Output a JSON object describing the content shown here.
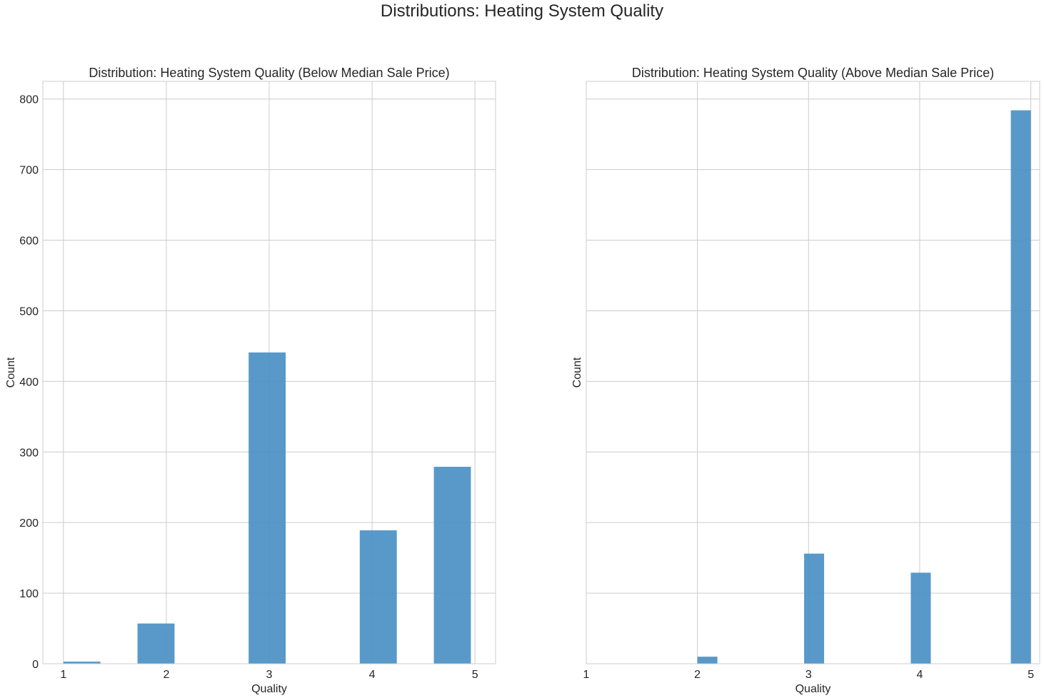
{
  "figure": {
    "suptitle": "Distributions: Heating System Quality"
  },
  "chart_data": [
    {
      "type": "bar",
      "title": "Distribution: Heating System Quality (Below Median Sale Price)",
      "xlabel": "Quality",
      "ylabel": "Count",
      "xlim": [
        0.8,
        5.2
      ],
      "ylim": [
        0,
        825
      ],
      "xticks": [
        1,
        2,
        3,
        4,
        5
      ],
      "yticks": [
        0,
        100,
        200,
        300,
        400,
        500,
        600,
        700,
        800
      ],
      "show_ytick_labels": true,
      "grid": true,
      "bar_color": "#4a90c4",
      "bars": [
        {
          "x0": 1.0,
          "x1": 1.36,
          "value": 3
        },
        {
          "x0": 1.72,
          "x1": 2.08,
          "value": 57
        },
        {
          "x0": 2.8,
          "x1": 3.16,
          "value": 441
        },
        {
          "x0": 3.88,
          "x1": 4.24,
          "value": 189
        },
        {
          "x0": 4.6,
          "x1": 4.96,
          "value": 279
        }
      ]
    },
    {
      "type": "bar",
      "title": "Distribution: Heating System Quality (Above Median Sale Price)",
      "xlabel": "Quality",
      "ylabel": "Count",
      "xlim": [
        1.0,
        5.08
      ],
      "ylim": [
        0,
        825
      ],
      "xticks": [
        1,
        2,
        3,
        4,
        5
      ],
      "yticks": [
        0,
        100,
        200,
        300,
        400,
        500,
        600,
        700,
        800
      ],
      "show_ytick_labels": false,
      "grid": true,
      "bar_color": "#4a90c4",
      "bars": [
        {
          "x0": 2.0,
          "x1": 2.18,
          "value": 10
        },
        {
          "x0": 2.96,
          "x1": 3.14,
          "value": 156
        },
        {
          "x0": 3.92,
          "x1": 4.1,
          "value": 129
        },
        {
          "x0": 4.82,
          "x1": 5.0,
          "value": 784
        }
      ]
    }
  ]
}
